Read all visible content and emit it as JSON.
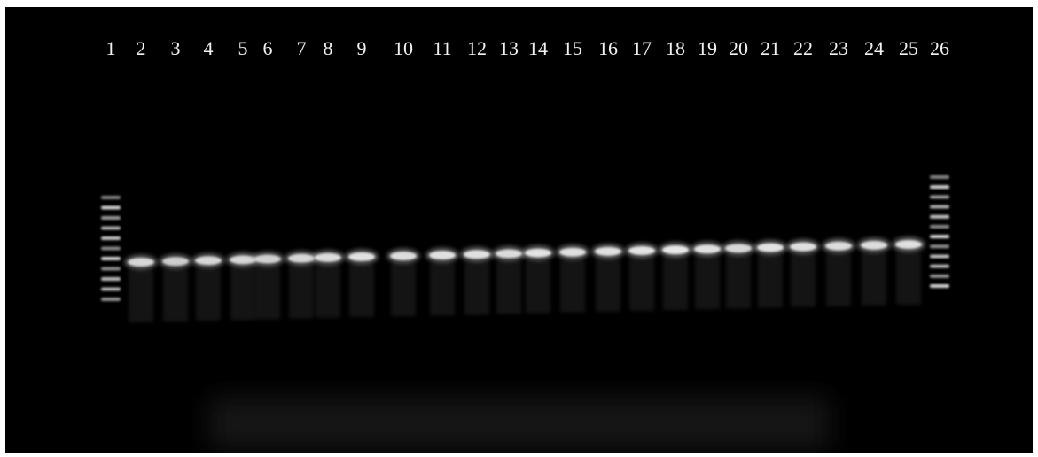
{
  "gel": {
    "lanes": [
      {
        "label": "1",
        "kind": "ladder"
      },
      {
        "label": "2",
        "kind": "sample",
        "brightness": 0.85
      },
      {
        "label": "3",
        "kind": "sample",
        "brightness": 0.8
      },
      {
        "label": "4",
        "kind": "sample",
        "brightness": 0.85
      },
      {
        "label": "5",
        "kind": "sample",
        "brightness": 0.85
      },
      {
        "label": "6",
        "kind": "sample",
        "brightness": 0.82
      },
      {
        "label": "7",
        "kind": "sample",
        "brightness": 0.85
      },
      {
        "label": "8",
        "kind": "sample",
        "brightness": 0.88
      },
      {
        "label": "9",
        "kind": "sample",
        "brightness": 0.9
      },
      {
        "label": "10",
        "kind": "sample",
        "brightness": 0.88
      },
      {
        "label": "11",
        "kind": "sample",
        "brightness": 0.9
      },
      {
        "label": "12",
        "kind": "sample",
        "brightness": 0.9
      },
      {
        "label": "13",
        "kind": "sample",
        "brightness": 0.88
      },
      {
        "label": "14",
        "kind": "sample",
        "brightness": 0.92
      },
      {
        "label": "15",
        "kind": "sample",
        "brightness": 0.9
      },
      {
        "label": "16",
        "kind": "sample",
        "brightness": 0.9
      },
      {
        "label": "17",
        "kind": "sample",
        "brightness": 0.92
      },
      {
        "label": "18",
        "kind": "sample",
        "brightness": 0.95
      },
      {
        "label": "19",
        "kind": "sample",
        "brightness": 0.9
      },
      {
        "label": "20",
        "kind": "sample",
        "brightness": 0.85
      },
      {
        "label": "21",
        "kind": "sample",
        "brightness": 0.92
      },
      {
        "label": "22",
        "kind": "sample",
        "brightness": 0.9
      },
      {
        "label": "23",
        "kind": "sample",
        "brightness": 0.88
      },
      {
        "label": "24",
        "kind": "sample",
        "brightness": 0.88
      },
      {
        "label": "25",
        "kind": "sample",
        "brightness": 0.9
      },
      {
        "label": "26",
        "kind": "ladder"
      }
    ]
  },
  "colors": {
    "background": "#000000",
    "band": "#f0f0f0",
    "label": "#f2f2f2"
  }
}
